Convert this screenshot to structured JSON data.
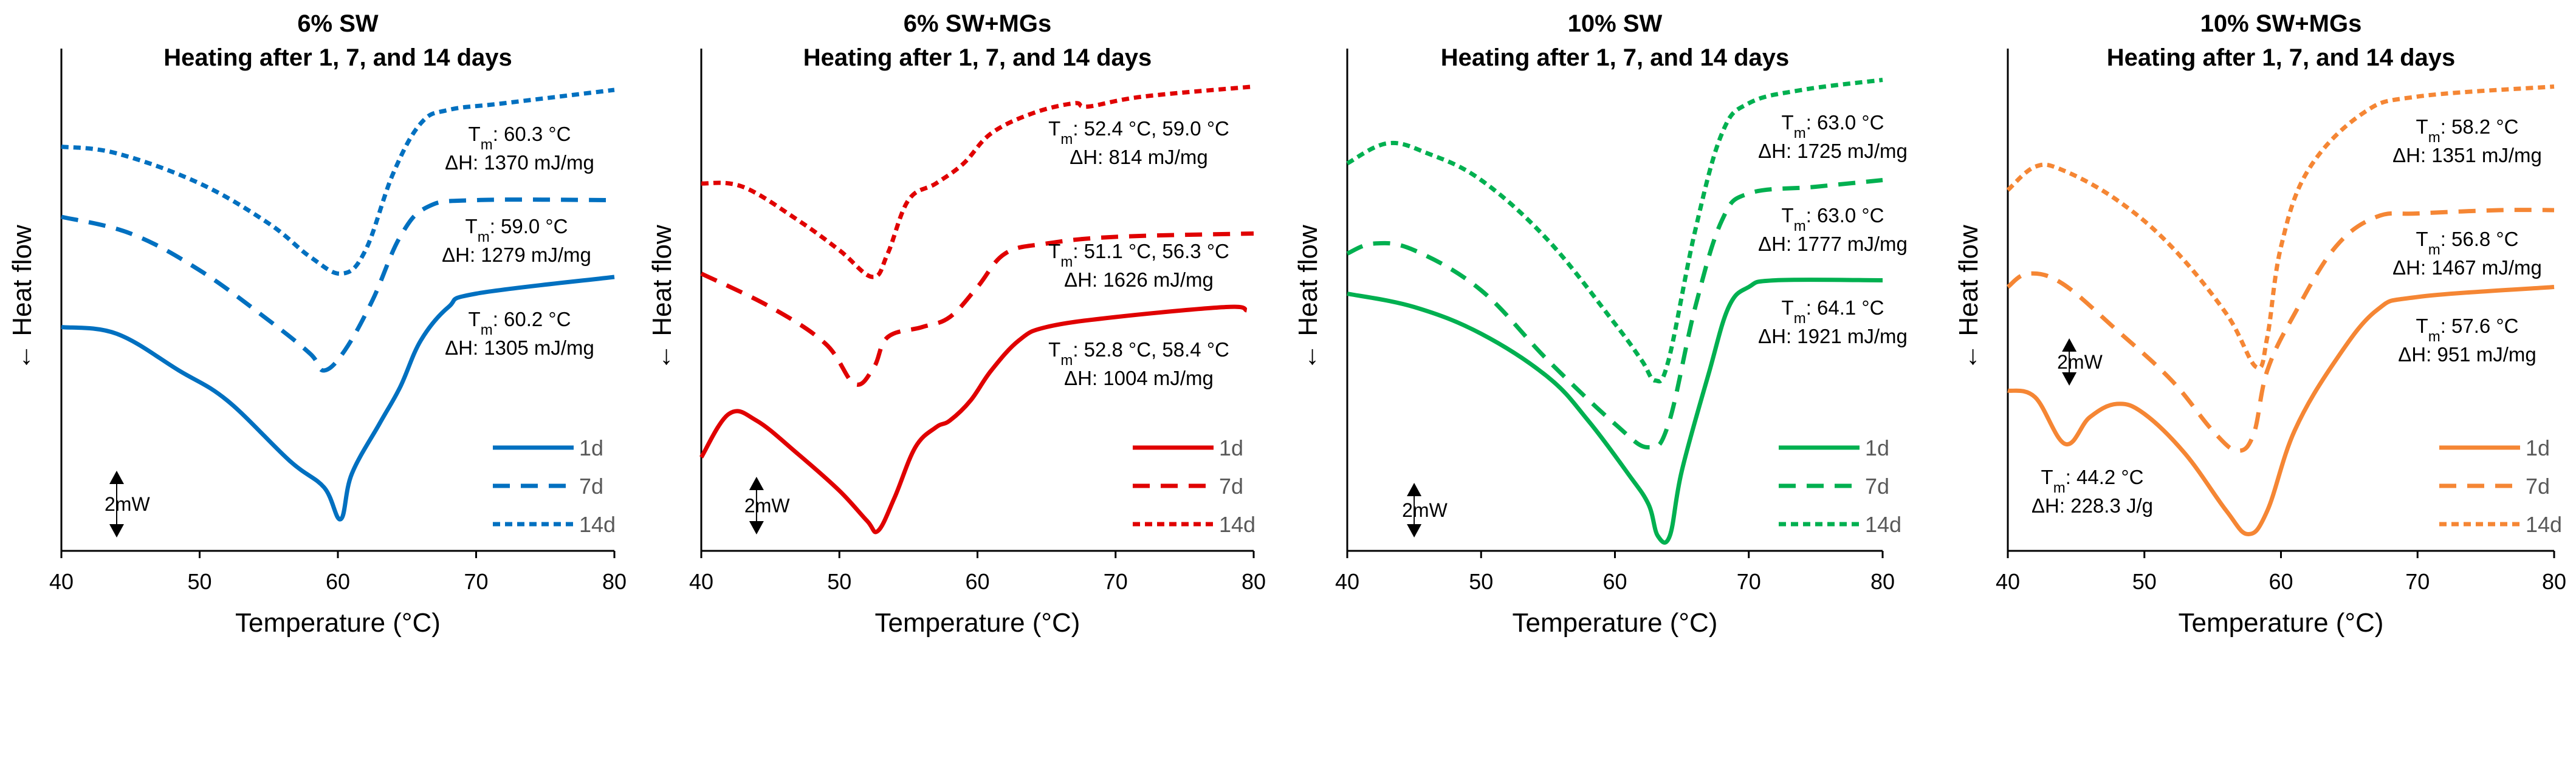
{
  "chart_data": [
    {
      "type": "line",
      "title": "6% SW",
      "subtitle": "Heating after 1, 7, and 14 days",
      "xlabel": "Temperature (°C)",
      "ylabel": "← Heat flow",
      "xlim": [
        40,
        80
      ],
      "xticks": [
        "40",
        "50",
        "60",
        "70",
        "80"
      ],
      "ylim": [
        0,
        15
      ],
      "y_units": "mW (relative, offset)",
      "scale_bar": "2mW",
      "color": "#0070C0",
      "legend_position": "bottom-right",
      "series": [
        {
          "name": "1d",
          "style": "solid",
          "x": [
            40,
            44,
            48.5,
            52,
            56.5,
            59,
            60.2,
            61,
            63,
            64.5,
            66,
            68,
            70,
            80
          ],
          "y": [
            6.7,
            6.5,
            5.4,
            4.5,
            2.7,
            1.9,
            0.95,
            2.3,
            3.8,
            4.9,
            6.3,
            7.3,
            7.7,
            8.2
          ]
        },
        {
          "name": "7d",
          "style": "dashed",
          "x": [
            40,
            45,
            50,
            55,
            58,
            59,
            60.5,
            62.5,
            64.5,
            66.5,
            70,
            80
          ],
          "y": [
            10.0,
            9.5,
            8.4,
            6.9,
            5.9,
            5.4,
            6.0,
            7.5,
            9.4,
            10.3,
            10.5,
            10.5
          ]
        },
        {
          "name": "14d",
          "style": "dotted",
          "x": [
            40,
            44,
            50,
            55,
            58,
            60.3,
            62,
            64,
            66,
            68,
            72,
            80
          ],
          "y": [
            12.1,
            11.9,
            11.0,
            9.8,
            8.8,
            8.3,
            9.0,
            11.3,
            12.8,
            13.2,
            13.4,
            13.8
          ]
        }
      ],
      "annotations": [
        {
          "series": "14d",
          "tm": "60.3 °C",
          "dh": "ΔH: 1370 mJ/mg"
        },
        {
          "series": "7d",
          "tm": "59.0 °C",
          "dh": "ΔH: 1279 mJ/mg"
        },
        {
          "series": "1d",
          "tm": "60.2 °C",
          "dh": "ΔH: 1305 mJ/mg"
        }
      ]
    },
    {
      "type": "line",
      "title": "6% SW+MGs",
      "subtitle": "Heating after 1, 7, and 14 days",
      "xlabel": "Temperature (°C)",
      "ylabel": "← Heat flow",
      "xlim": [
        40,
        80
      ],
      "xticks": [
        "40",
        "50",
        "60",
        "70",
        "80"
      ],
      "ylim": [
        0,
        15
      ],
      "y_units": "mW (relative, offset)",
      "scale_bar": "2mW",
      "color": "#E00000",
      "legend_position": "bottom-right",
      "series": [
        {
          "name": "1d",
          "style": "solid",
          "x": [
            40,
            42,
            44,
            47,
            50,
            52,
            52.8,
            54,
            55.5,
            57,
            58,
            59.5,
            61,
            63,
            65,
            70,
            78,
            79.5
          ],
          "y": [
            2.8,
            4.1,
            3.9,
            2.9,
            1.8,
            0.9,
            0.6,
            1.6,
            3.1,
            3.7,
            3.9,
            4.5,
            5.4,
            6.3,
            6.7,
            7.0,
            7.3,
            7.2
          ]
        },
        {
          "name": "7d",
          "style": "dashed",
          "x": [
            40,
            45,
            49,
            51.1,
            52.5,
            53.5,
            56,
            58,
            60,
            62,
            65,
            70,
            80
          ],
          "y": [
            8.3,
            7.3,
            6.2,
            5.0,
            5.5,
            6.4,
            6.7,
            7.0,
            7.9,
            8.9,
            9.2,
            9.4,
            9.5
          ]
        },
        {
          "name": "14d",
          "style": "dotted",
          "x": [
            40,
            43,
            47,
            50,
            52.4,
            53.5,
            55,
            57,
            59,
            61,
            64,
            67,
            68,
            72,
            80
          ],
          "y": [
            11.0,
            10.9,
            9.9,
            9.0,
            8.2,
            8.9,
            10.5,
            11.0,
            11.6,
            12.5,
            13.1,
            13.4,
            13.3,
            13.6,
            13.9
          ]
        }
      ],
      "annotations": [
        {
          "series": "14d",
          "tm": "52.4 °C, 59.0 °C",
          "dh": "ΔH: 814 mJ/mg"
        },
        {
          "series": "7d",
          "tm": "51.1 °C, 56.3 °C",
          "dh": "ΔH: 1626 mJ/mg"
        },
        {
          "series": "1d",
          "tm": "52.8 °C, 58.4 °C",
          "dh": "ΔH: 1004 mJ/mg"
        }
      ]
    },
    {
      "type": "line",
      "title": "10% SW",
      "subtitle": "Heating after 1, 7, and 14 days",
      "xlabel": "Temperature (°C)",
      "ylabel": "← Heat flow",
      "xlim": [
        40,
        80
      ],
      "xticks": [
        "40",
        "50",
        "60",
        "70",
        "80"
      ],
      "ylim": [
        0,
        15
      ],
      "y_units": "mW (relative, offset)",
      "scale_bar": "2mW",
      "color": "#00B050",
      "legend_position": "bottom-right",
      "series": [
        {
          "name": "1d",
          "style": "solid",
          "x": [
            40,
            45,
            50,
            55,
            58,
            61,
            62.5,
            63.2,
            64.1,
            65,
            67,
            68.5,
            70,
            72,
            80
          ],
          "y": [
            7.7,
            7.3,
            6.5,
            5.2,
            3.9,
            2.3,
            1.4,
            0.45,
            0.45,
            2.4,
            5.3,
            7.3,
            7.9,
            8.1,
            8.1
          ]
        },
        {
          "name": "7d",
          "style": "dashed",
          "x": [
            40,
            42,
            45,
            50,
            55,
            60,
            62.5,
            64,
            66,
            68,
            70,
            75,
            80
          ],
          "y": [
            8.9,
            9.2,
            9.0,
            7.8,
            5.7,
            3.8,
            3.1,
            3.8,
            7.3,
            9.9,
            10.7,
            10.9,
            11.1
          ]
        },
        {
          "name": "14d",
          "style": "dotted",
          "x": [
            40,
            43,
            46,
            50,
            55,
            60,
            62,
            63,
            64,
            66,
            68,
            70,
            74,
            80
          ],
          "y": [
            11.6,
            12.2,
            11.9,
            11.1,
            9.3,
            6.8,
            5.7,
            5.1,
            5.7,
            9.6,
            12.5,
            13.4,
            13.8,
            14.1
          ]
        }
      ],
      "annotations": [
        {
          "series": "14d",
          "tm": "63.0 °C",
          "dh": "ΔH: 1725 mJ/mg"
        },
        {
          "series": "7d",
          "tm": "63.0 °C",
          "dh": "ΔH: 1777 mJ/mg"
        },
        {
          "series": "1d",
          "tm": "64.1 °C",
          "dh": "ΔH: 1921 mJ/mg"
        }
      ]
    },
    {
      "type": "line",
      "title": "10% SW+MGs",
      "subtitle": "Heating after 1, 7, and 14 days",
      "xlabel": "Temperature (°C)",
      "ylabel": "← Heat flow",
      "xlim": [
        40,
        80
      ],
      "xticks": [
        "40",
        "50",
        "60",
        "70",
        "80"
      ],
      "ylim": [
        0,
        15
      ],
      "y_units": "mW (relative, offset)",
      "scale_bar": "2mW",
      "color": "#F58634",
      "legend_position": "bottom-right",
      "series": [
        {
          "name": "1d",
          "style": "solid",
          "x": [
            40,
            42,
            44.2,
            46,
            48,
            50,
            53,
            56,
            57.6,
            59,
            61,
            64,
            67,
            70,
            80
          ],
          "y": [
            4.8,
            4.6,
            3.2,
            4.0,
            4.4,
            4.1,
            2.9,
            1.2,
            0.5,
            1.2,
            3.6,
            5.7,
            7.2,
            7.6,
            7.9
          ]
        },
        {
          "name": "7d",
          "style": "dashed",
          "x": [
            40,
            41.5,
            44,
            48,
            52,
            55,
            56.8,
            58,
            59,
            61,
            64,
            67,
            70,
            76,
            80
          ],
          "y": [
            7.9,
            8.3,
            8.0,
            6.6,
            5.1,
            3.6,
            3.0,
            3.5,
            5.4,
            7.1,
            9.1,
            10.0,
            10.1,
            10.2,
            10.2
          ]
        },
        {
          "name": "14d",
          "style": "dotted",
          "x": [
            40,
            42,
            44,
            48,
            52,
            56,
            58.2,
            59,
            60,
            62,
            66,
            70,
            80
          ],
          "y": [
            10.8,
            11.5,
            11.4,
            10.5,
            9.1,
            7.1,
            5.5,
            6.4,
            9.1,
            11.4,
            13.1,
            13.6,
            13.9
          ]
        }
      ],
      "annotations": [
        {
          "series": "14d",
          "tm": "58.2 °C",
          "dh": "ΔH: 1351 mJ/mg"
        },
        {
          "series": "7d",
          "tm": "56.8 °C",
          "dh": "ΔH: 1467 mJ/mg"
        },
        {
          "series": "1d",
          "tm": "57.6 °C",
          "dh": "ΔH: 951 mJ/mg"
        },
        {
          "series": "1d",
          "tm": "44.2 °C",
          "dh": "ΔH: 228.3 J/g"
        }
      ]
    }
  ],
  "labels": {
    "tm_prefix": "T",
    "tm_sub": "m",
    "tm_colon": ": "
  }
}
